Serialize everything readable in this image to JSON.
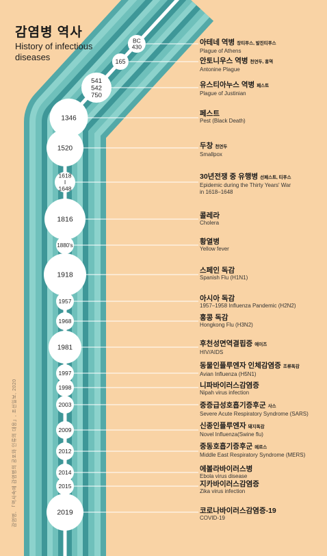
{
  "title_ko": "감염병 역사",
  "title_en": "History of infectious diseases",
  "source": "감염병, 「역사속에 감염병의 공포와 인류의 대응」, 조선일보, 2020",
  "colors": {
    "background": "#f9d3a5",
    "band_outer": "#53a9a8",
    "band_light": "#8cd2cc",
    "band_mid": "#6fc0bb",
    "band_dark": "#3e9798",
    "center_line": "#ffffff",
    "node": "#ffffff",
    "leader_line": "#ffffff"
  },
  "events": [
    {
      "year": "BC 430",
      "name_ko": "아테네 역병",
      "note": "장티푸스, 발진티푸스",
      "name_en": "Plague of Athens"
    },
    {
      "year": "165",
      "name_ko": "안토니우스 역병",
      "note": "천연두, 홍역",
      "name_en": "Antonine Plague"
    },
    {
      "year": "541 542 750",
      "name_ko": "유스티아누스 역병",
      "note": "페스트",
      "name_en": "Plague of Justinian"
    },
    {
      "year": "1346",
      "name_ko": "페스트",
      "note": "",
      "name_en": "Pest (Black Death)"
    },
    {
      "year": "1520",
      "name_ko": "두창",
      "note": "천연두",
      "name_en": "Smallpox"
    },
    {
      "year": "1618 I 1648",
      "name_ko": "30년전쟁 중 유행병",
      "note": "선페스트, 티푸스",
      "name_en": "Epidemic during the Thirty Years' War in 1618–1648"
    },
    {
      "year": "1816",
      "name_ko": "콜레라",
      "note": "",
      "name_en": "Cholera"
    },
    {
      "year": "1880's",
      "name_ko": "황열병",
      "note": "",
      "name_en": "Yellow fever"
    },
    {
      "year": "1918",
      "name_ko": "스페인 독감",
      "note": "",
      "name_en": "Spanish Flu (H1N1)"
    },
    {
      "year": "1957",
      "name_ko": "아시아 독감",
      "note": "",
      "name_en": "1957–1958 Influenza Pandemic (H2N2)"
    },
    {
      "year": "1968",
      "name_ko": "홍콩 독감",
      "note": "",
      "name_en": "Hongkong Flu (H3N2)"
    },
    {
      "year": "1981",
      "name_ko": "후천성면역결핍증",
      "note": "에이즈",
      "name_en": "HIV/AIDS"
    },
    {
      "year": "1997",
      "name_ko": "동물인플루엔자 인체감염증",
      "note": "조류독감",
      "name_en": "Avian Influenza (H5N1)"
    },
    {
      "year": "1998",
      "name_ko": "니파바이러스감염증",
      "note": "",
      "name_en": "Nipah virus infection"
    },
    {
      "year": "2003",
      "name_ko": "중증급성호흡기증후군",
      "note": "사스",
      "name_en": "Severe Acute Respiratory Syndrome (SARS)"
    },
    {
      "year": "2009",
      "name_ko": "신종인플루엔자",
      "note": "돼지독감",
      "name_en": "Novel Influenza(Swine flu)"
    },
    {
      "year": "2012",
      "name_ko": "중동호흡기증후군",
      "note": "메르스",
      "name_en": "Middle East Respiratory Syndrome (MERS)"
    },
    {
      "year": "2014",
      "name_ko": "에볼라바이러스병",
      "note": "",
      "name_en": "Ebola virus disease"
    },
    {
      "year": "2015",
      "name_ko": "지카바이러스감염증",
      "note": "",
      "name_en": "Zika virus infection"
    },
    {
      "year": "2019",
      "name_ko": "코로나바이러스감염증-19",
      "note": "",
      "name_en": "COVID-19"
    }
  ]
}
